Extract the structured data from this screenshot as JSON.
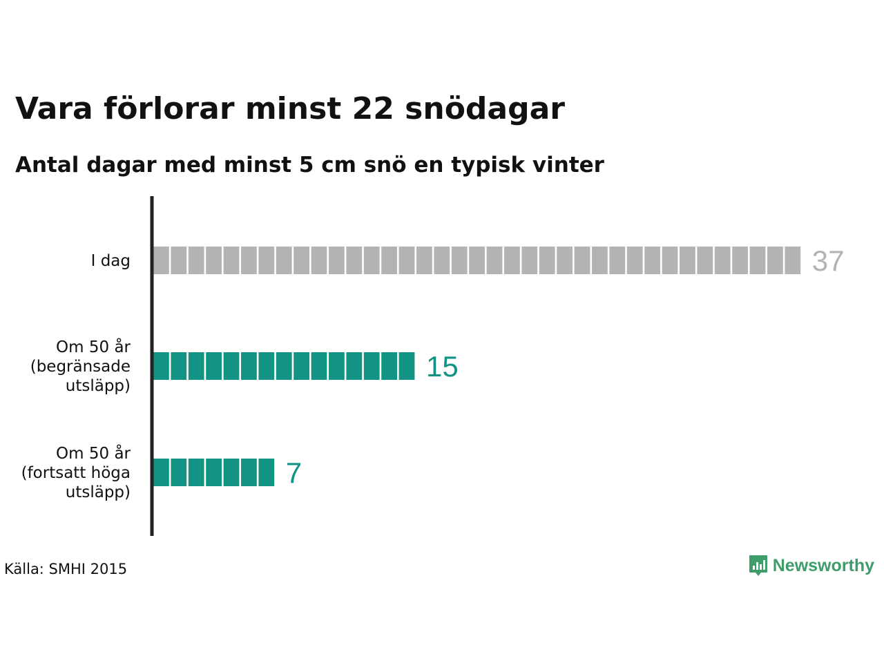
{
  "header": {
    "title": "Vara förlorar minst 22 snödagar",
    "subtitle": "Antal dagar med minst 5 cm snö en typisk vinter"
  },
  "chart_data": {
    "type": "bar",
    "orientation": "horizontal",
    "title": "Vara förlorar minst 22 snödagar",
    "subtitle": "Antal dagar med minst 5 cm snö en typisk vinter",
    "categories": [
      [
        "I dag"
      ],
      [
        "Om 50 år",
        "(begränsade",
        "utsläpp)"
      ],
      [
        "Om 50 år",
        "(fortsatt höga",
        "utsläpp)"
      ]
    ],
    "values": [
      37,
      15,
      7
    ],
    "value_labels": [
      "37",
      "15",
      "7"
    ],
    "colors": [
      "#b3b3b3",
      "#129383",
      "#129383"
    ],
    "label_colors": [
      "#b3b3b3",
      "#129383",
      "#129383"
    ],
    "unit_blocks": true,
    "axis_color": "#222222"
  },
  "footer": {
    "source": "Källa: SMHI 2015",
    "brand": "Newsworthy",
    "brand_icon": "newsworthy-logo-icon",
    "brand_color": "#3f9c6b"
  }
}
